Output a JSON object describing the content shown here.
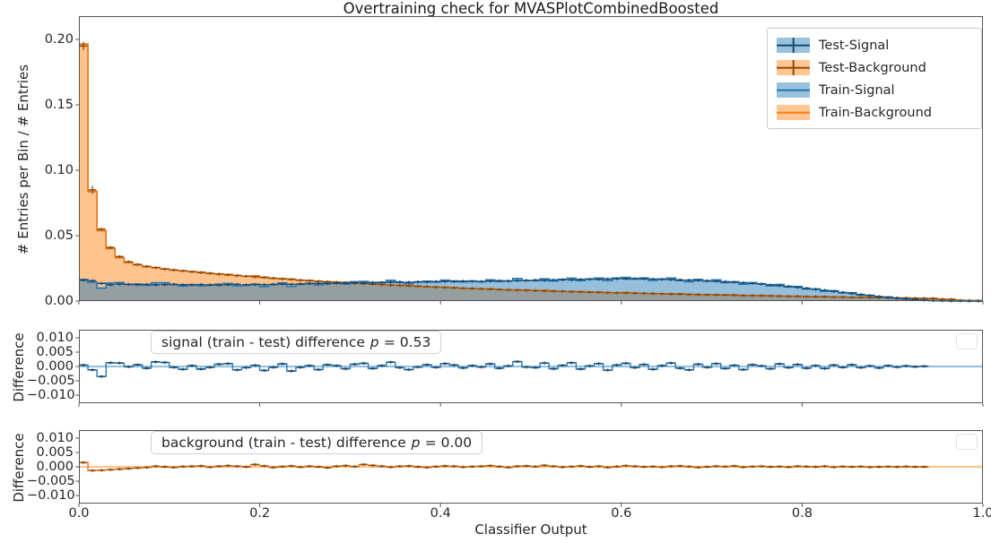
{
  "figure": {
    "title": "Overtraining check for MVASPlotCombinedBoosted",
    "xlabel": "Classifier Output",
    "colors": {
      "signal": "#1f77b4",
      "background": "#ff7f0e",
      "signal_edge": "#2478b4",
      "background_edge": "#e8720e",
      "signal_dark": "#17486e",
      "background_dark": "#8c4a08",
      "spine": "#555555",
      "text": "#262626",
      "legend_border": "#cccccc"
    }
  },
  "xaxis": {
    "tick_labels": [
      "0.0",
      "0.2",
      "0.4",
      "0.6",
      "0.8",
      "1.0"
    ],
    "tick_values": [
      0,
      0.2,
      0.4,
      0.6,
      0.8,
      1.0
    ]
  },
  "main_panel": {
    "ylabel": "# Entries per Bin / # Entries",
    "ytick_labels": [
      "0.00",
      "0.05",
      "0.10",
      "0.15",
      "0.20"
    ],
    "ytick_values": [
      0,
      0.05,
      0.1,
      0.15,
      0.2
    ],
    "legend": {
      "items": [
        {
          "label": "Test-Signal",
          "style": "errorbar",
          "color": "#1f77b4"
        },
        {
          "label": "Test-Background",
          "style": "errorbar",
          "color": "#ff7f0e"
        },
        {
          "label": "Train-Signal",
          "style": "filled-line",
          "color": "#1f77b4"
        },
        {
          "label": "Train-Background",
          "style": "filled-line",
          "color": "#ff7f0e"
        }
      ]
    }
  },
  "signal_panel": {
    "ylabel": "Difference",
    "ytick_labels": [
      "0.010",
      "0.005",
      "0.000",
      "−0.005",
      "−0.010"
    ],
    "ytick_values": [
      0.01,
      0.005,
      0.0,
      -0.005,
      -0.01
    ],
    "annotation": {
      "text": "signal (train - test) difference",
      "p_symbol": "p",
      "p_value": "= 0.53"
    }
  },
  "background_panel": {
    "ylabel": "Difference",
    "ytick_labels": [
      "0.010",
      "0.005",
      "0.000",
      "−0.005",
      "−0.010"
    ],
    "ytick_values": [
      0.01,
      0.005,
      0.0,
      -0.005,
      -0.01
    ],
    "annotation": {
      "text": "background (train - test) difference",
      "p_symbol": "p",
      "p_value": "= 0.00"
    }
  },
  "chart_data": [
    {
      "type": "bar",
      "subtype": "normalized-histogram-100-bins",
      "title": "Overtraining check for MVASPlotCombinedBoosted",
      "xlabel": "Classifier Output",
      "ylabel": "# Entries per Bin / # Entries",
      "xlim": [
        0,
        1
      ],
      "ylim": [
        0,
        0.2178
      ],
      "x_start": 0,
      "bin_width": 0.01,
      "n_bins": 100,
      "legend_position": "upper right",
      "grid": false,
      "series": [
        {
          "name": "Test-Signal",
          "color": "#1f77b4",
          "values": [
            0.016,
            0.0155,
            0.0135,
            0.0125,
            0.013,
            0.0128,
            0.0125,
            0.0127,
            0.0124,
            0.0126,
            0.0128,
            0.0125,
            0.0123,
            0.0126,
            0.0124,
            0.0122,
            0.0125,
            0.0128,
            0.0124,
            0.0126,
            0.0125,
            0.0128,
            0.013,
            0.0128,
            0.0131,
            0.0133,
            0.0135,
            0.0133,
            0.0136,
            0.0138,
            0.014,
            0.0139,
            0.0142,
            0.0141,
            0.0144,
            0.0146,
            0.0144,
            0.0147,
            0.0146,
            0.0149,
            0.015,
            0.0149,
            0.0152,
            0.0151,
            0.015,
            0.0153,
            0.0155,
            0.0153,
            0.0156,
            0.0158,
            0.016,
            0.0158,
            0.0161,
            0.0163,
            0.0162,
            0.0165,
            0.0167,
            0.0166,
            0.0169,
            0.0171,
            0.017,
            0.0172,
            0.017,
            0.0168,
            0.0166,
            0.0164,
            0.0162,
            0.016,
            0.0158,
            0.0155,
            0.0152,
            0.0148,
            0.0144,
            0.014,
            0.0135,
            0.013,
            0.0124,
            0.0118,
            0.0112,
            0.0105,
            0.0098,
            0.009,
            0.0082,
            0.0074,
            0.0066,
            0.0058,
            0.005,
            0.0042,
            0.0035,
            0.0028,
            0.0022,
            0.0016,
            0.0011,
            0.0007,
            0.0004,
            0.0002,
            0.0001,
            0.0001,
            0.0,
            0.0
          ]
        },
        {
          "name": "Test-Background",
          "color": "#ff7f0e",
          "values": [
            0.195,
            0.085,
            0.055,
            0.041,
            0.034,
            0.03,
            0.028,
            0.0265,
            0.0255,
            0.0245,
            0.0238,
            0.0231,
            0.0224,
            0.0218,
            0.0212,
            0.0206,
            0.02,
            0.0195,
            0.019,
            0.0185,
            0.018,
            0.0175,
            0.017,
            0.0165,
            0.016,
            0.0156,
            0.0152,
            0.0148,
            0.0144,
            0.014,
            0.0136,
            0.0133,
            0.0129,
            0.0126,
            0.0122,
            0.0119,
            0.0116,
            0.0113,
            0.011,
            0.0107,
            0.0104,
            0.0101,
            0.0098,
            0.0096,
            0.0093,
            0.0091,
            0.0088,
            0.0086,
            0.0084,
            0.0082,
            0.008,
            0.0078,
            0.0076,
            0.0074,
            0.0072,
            0.007,
            0.0068,
            0.0067,
            0.0065,
            0.0063,
            0.0062,
            0.006,
            0.0059,
            0.0057,
            0.0056,
            0.0054,
            0.0053,
            0.0051,
            0.005,
            0.0049,
            0.0047,
            0.0046,
            0.0045,
            0.0043,
            0.0042,
            0.0041,
            0.004,
            0.0038,
            0.0037,
            0.0036,
            0.0035,
            0.0034,
            0.0033,
            0.0031,
            0.003,
            0.0029,
            0.0028,
            0.0027,
            0.0026,
            0.0025,
            0.0024,
            0.0023,
            0.0022,
            0.0021,
            0.002,
            0.0014,
            0.0013,
            0.0006,
            0.0004,
            0.0003
          ]
        },
        {
          "name": "Train-Signal",
          "color": "#1f77b4",
          "values_rule": "Test-Signal values plus signal diff (chart_data[1])"
        },
        {
          "name": "Train-Background",
          "color": "#ff7f0e",
          "values_rule": "Test-Background values plus background diff (chart_data[2])"
        }
      ]
    },
    {
      "type": "line",
      "subtype": "step-histogram-difference",
      "name": "signal (train - test) difference",
      "p_value": 0.53,
      "ylabel": "Difference",
      "xlim": [
        0,
        1
      ],
      "ylim": [
        -0.0128,
        0.0128
      ],
      "x_start": 0,
      "bin_width": 0.01,
      "color": "#1f77b4",
      "values": [
        0.0005,
        -0.0012,
        -0.0035,
        0.0013,
        0.0012,
        -0.0001,
        0.0006,
        -0.0006,
        0.0016,
        0.0014,
        -0.0003,
        -0.001,
        0.0003,
        -0.0009,
        -0.0003,
        0.0008,
        0.001,
        -0.0012,
        -0.0004,
        0.0004,
        -0.0014,
        -0.0003,
        0.0009,
        -0.0016,
        -0.0003,
        0.0003,
        -0.0011,
        0.0006,
        0.0003,
        -0.0008,
        0.0008,
        0.0011,
        -0.0007,
        0.0003,
        0.0015,
        -0.0004,
        -0.0011,
        -0.0002,
        0.0006,
        -0.0003,
        0.001,
        0.0005,
        -0.0005,
        0.0003,
        -0.0002,
        0.0009,
        -0.0006,
        0.0002,
        0.0017,
        -0.0002,
        -0.0004,
        0.0012,
        -0.0008,
        0.0004,
        0.0013,
        -0.0009,
        0.0002,
        0.001,
        -0.0013,
        0.0005,
        0.0011,
        -0.0004,
        0.0007,
        -0.001,
        0.0003,
        0.0012,
        -0.0006,
        -0.0012,
        0.0008,
        -0.0003,
        0.001,
        -0.0007,
        0.0004,
        -0.0011,
        0.0006,
        0.0002,
        -0.0008,
        0.0009,
        -0.0004,
        0.0007,
        -0.0006,
        0.0003,
        -0.0007,
        0.0005,
        -0.0003,
        0.0006,
        -0.0004,
        0.0002,
        -0.0005,
        0.0003,
        -0.0002,
        0.0002,
        -0.0001,
        0.0001,
        null,
        null,
        null,
        null,
        null,
        null
      ]
    },
    {
      "type": "line",
      "subtype": "step-histogram-difference",
      "name": "background (train - test) difference",
      "p_value": 0.0,
      "ylabel": "Difference",
      "xlim": [
        0,
        1
      ],
      "ylim": [
        -0.0128,
        0.0128
      ],
      "x_start": 0,
      "bin_width": 0.01,
      "color": "#ff7f0e",
      "values": [
        0.0015,
        -0.0013,
        -0.0012,
        -0.001,
        -0.0008,
        -0.0006,
        -0.0004,
        -0.0002,
        0.0002,
        0.0,
        -0.0002,
        0.0001,
        0.0002,
        0.0003,
        -0.0001,
        0.0002,
        0.0004,
        0.0002,
        0.0,
        0.0008,
        0.0003,
        -0.0002,
        0.0001,
        0.0003,
        -0.0001,
        0.0002,
        0.0,
        -0.0003,
        0.0002,
        0.0004,
        0.0001,
        0.0008,
        0.0005,
        0.0002,
        -0.0001,
        0.0002,
        0.0003,
        0.0,
        -0.0002,
        0.0001,
        0.0003,
        0.0002,
        -0.0001,
        0.0001,
        0.0002,
        0.0004,
        0.0001,
        -0.0002,
        0.0002,
        0.0003,
        0.0001,
        0.0005,
        0.0002,
        -0.0001,
        0.0001,
        0.0003,
        0.0,
        0.0002,
        -0.0002,
        0.0001,
        0.0004,
        0.0002,
        0.0,
        0.0001,
        -0.0001,
        0.0002,
        0.0003,
        0.0001,
        -0.0002,
        0.0,
        0.0002,
        0.0001,
        0.0003,
        -0.0001,
        0.0001,
        0.0002,
        0.0,
        0.0001,
        -0.0001,
        0.0002,
        0.0001,
        0.0,
        0.0002,
        -0.0001,
        0.0001,
        0.0,
        0.0001,
        -0.0001,
        0.0,
        0.0001,
        0.0,
        0.0001,
        0.0,
        0.0,
        null,
        null,
        null,
        null,
        null,
        null
      ]
    }
  ]
}
